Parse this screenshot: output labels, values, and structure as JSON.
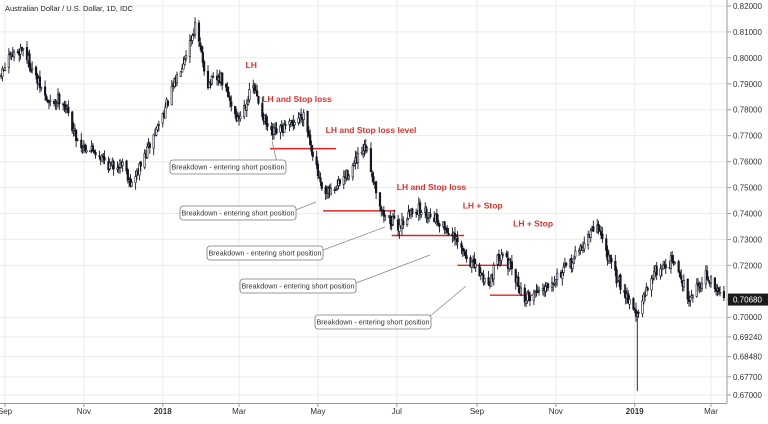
{
  "chart_data": {
    "type": "candlestick",
    "title": "Australian Dollar / U.S. Dollar, 1D, IDC",
    "ylim": [
      0.665,
      0.821
    ],
    "y_ticks": [
      {
        "value": 0.82,
        "label": "0.82000"
      },
      {
        "value": 0.81,
        "label": "0.81000"
      },
      {
        "value": 0.8,
        "label": "0.80000"
      },
      {
        "value": 0.79,
        "label": "0.79000"
      },
      {
        "value": 0.78,
        "label": "0.78000"
      },
      {
        "value": 0.77,
        "label": "0.77000"
      },
      {
        "value": 0.76,
        "label": "0.76000"
      },
      {
        "value": 0.75,
        "label": "0.75000"
      },
      {
        "value": 0.74,
        "label": "0.74000"
      },
      {
        "value": 0.73,
        "label": "0.73000"
      },
      {
        "value": 0.72,
        "label": "0.72000"
      },
      {
        "value": 0.7068,
        "label": "0.70680"
      },
      {
        "value": 0.7,
        "label": "0.70000"
      },
      {
        "value": 0.6924,
        "label": "0.69240"
      },
      {
        "value": 0.6848,
        "label": "0.68480"
      },
      {
        "value": 0.677,
        "label": "0.67700"
      },
      {
        "value": 0.67,
        "label": "0.67000"
      }
    ],
    "x_ticks": [
      {
        "day": 0,
        "label": "Sep",
        "bold": false
      },
      {
        "day": 61,
        "label": "Nov",
        "bold": false
      },
      {
        "day": 122,
        "label": "2018",
        "bold": true
      },
      {
        "day": 181,
        "label": "Mar",
        "bold": false
      },
      {
        "day": 242,
        "label": "May",
        "bold": false
      },
      {
        "day": 303,
        "label": "Jul",
        "bold": false
      },
      {
        "day": 365,
        "label": "Sep",
        "bold": false
      },
      {
        "day": 426,
        "label": "Nov",
        "bold": false
      },
      {
        "day": 487,
        "label": "2019",
        "bold": true
      },
      {
        "day": 546,
        "label": "Mar",
        "bold": false
      }
    ],
    "x_start": "2017-09-01",
    "x_end": "2019-03-15",
    "anchors": [
      {
        "date": "2017-08-25",
        "close": 0.79
      },
      {
        "date": "2017-09-05",
        "close": 0.8
      },
      {
        "date": "2017-09-15",
        "close": 0.804
      },
      {
        "date": "2017-09-25",
        "close": 0.792
      },
      {
        "date": "2017-10-05",
        "close": 0.782
      },
      {
        "date": "2017-10-15",
        "close": 0.785
      },
      {
        "date": "2017-10-28",
        "close": 0.767
      },
      {
        "date": "2017-11-10",
        "close": 0.764
      },
      {
        "date": "2017-11-22",
        "close": 0.758
      },
      {
        "date": "2017-12-01",
        "close": 0.76
      },
      {
        "date": "2017-12-08",
        "close": 0.751
      },
      {
        "date": "2017-12-20",
        "close": 0.764
      },
      {
        "date": "2018-01-05",
        "close": 0.783
      },
      {
        "date": "2018-01-26",
        "close": 0.812
      },
      {
        "date": "2018-02-05",
        "close": 0.79
      },
      {
        "date": "2018-02-15",
        "close": 0.792
      },
      {
        "date": "2018-02-28",
        "close": 0.776
      },
      {
        "date": "2018-03-12",
        "close": 0.789
      },
      {
        "date": "2018-03-25",
        "close": 0.77
      },
      {
        "date": "2018-04-10",
        "close": 0.774
      },
      {
        "date": "2018-04-20",
        "close": 0.779
      },
      {
        "date": "2018-05-05",
        "close": 0.746
      },
      {
        "date": "2018-05-15",
        "close": 0.75
      },
      {
        "date": "2018-05-25",
        "close": 0.756
      },
      {
        "date": "2018-06-07",
        "close": 0.765
      },
      {
        "date": "2018-06-20",
        "close": 0.74
      },
      {
        "date": "2018-07-02",
        "close": 0.735
      },
      {
        "date": "2018-07-15",
        "close": 0.742
      },
      {
        "date": "2018-07-30",
        "close": 0.739
      },
      {
        "date": "2018-08-12",
        "close": 0.732
      },
      {
        "date": "2018-08-20",
        "close": 0.726
      },
      {
        "date": "2018-09-01",
        "close": 0.718
      },
      {
        "date": "2018-09-10",
        "close": 0.713
      },
      {
        "date": "2018-09-20",
        "close": 0.726
      },
      {
        "date": "2018-10-08",
        "close": 0.707
      },
      {
        "date": "2018-10-20",
        "close": 0.711
      },
      {
        "date": "2018-11-10",
        "close": 0.719
      },
      {
        "date": "2018-12-03",
        "close": 0.736
      },
      {
        "date": "2018-12-15",
        "close": 0.718
      },
      {
        "date": "2018-12-31",
        "close": 0.704
      },
      {
        "date": "2019-01-03",
        "close": 0.7
      },
      {
        "date": "2019-01-15",
        "close": 0.717
      },
      {
        "date": "2019-01-30",
        "close": 0.722
      },
      {
        "date": "2019-02-12",
        "close": 0.708
      },
      {
        "date": "2019-02-25",
        "close": 0.716
      },
      {
        "date": "2019-03-15",
        "close": 0.704
      }
    ],
    "flash_crash": {
      "date": "2019-01-03",
      "low": 0.6715
    },
    "levels": [
      {
        "value": 0.765,
        "x1": "2018-03-25",
        "x2": "2018-05-15"
      },
      {
        "value": 0.741,
        "x1": "2018-05-05",
        "x2": "2018-06-30"
      },
      {
        "value": 0.7315,
        "x1": "2018-06-27",
        "x2": "2018-08-22"
      },
      {
        "value": 0.72,
        "x1": "2018-08-17",
        "x2": "2018-09-27"
      },
      {
        "value": 0.7085,
        "x1": "2018-09-11",
        "x2": "2018-10-14"
      }
    ],
    "annotations": [
      {
        "text": "LH",
        "date": "2018-03-06",
        "value": 0.796
      },
      {
        "text": "LH and Stop loss",
        "date": "2018-03-19",
        "value": 0.783
      },
      {
        "text": "LH and Stop loss level",
        "date": "2018-05-07",
        "value": 0.771
      },
      {
        "text": "LH and Stop loss",
        "date": "2018-07-01",
        "value": 0.749
      },
      {
        "text": "LH + Stop",
        "date": "2018-08-21",
        "value": 0.742
      },
      {
        "text": "LH + Stop",
        "date": "2018-09-29",
        "value": 0.735
      }
    ],
    "callouts": [
      {
        "text": "Breakdown - entering short position",
        "bx": 170,
        "by": 167,
        "ax": 272,
        "ay": 141
      },
      {
        "text": "Breakdown - entering short position",
        "bx": 180,
        "by": 213,
        "ax": 316,
        "ay": 202
      },
      {
        "text": "Breakdown - entering short position",
        "bx": 207,
        "by": 253,
        "ax": 385,
        "ay": 227
      },
      {
        "text": "Breakdown - entering short position",
        "bx": 240,
        "by": 286,
        "ax": 430,
        "ay": 255
      },
      {
        "text": "Breakdown - entering short position",
        "bx": 315,
        "by": 322,
        "ax": 466,
        "ay": 286
      }
    ],
    "colors": {
      "candle": "#131722",
      "level_line": "#e62020",
      "annotation": "#e0302a",
      "grid": "#ebebeb",
      "axis": "#999999",
      "highlight_label": "#1a1a1a"
    }
  }
}
